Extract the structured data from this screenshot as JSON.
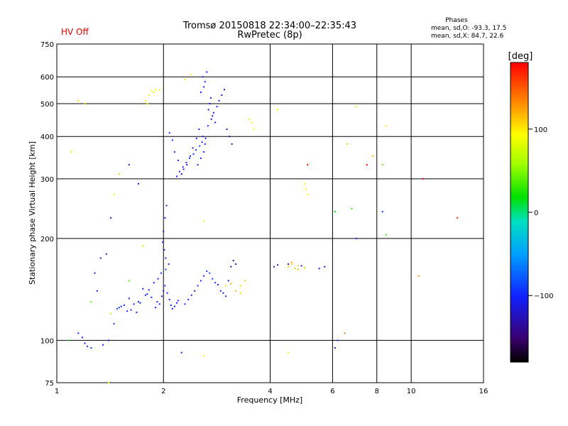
{
  "header": {
    "title": "Tromsø 20150818 22:34:00–22:35:43",
    "subtitle": "RwPretec (8p)",
    "hv_status": "HV Off",
    "phases_title": "Phases",
    "phases_o": "mean, sd,O: -93.3, 17.5",
    "phases_x": "mean, sd,X: 84.7, 22.6"
  },
  "colors": {
    "hv_status": "#e00000",
    "grid": "#000000",
    "background": "#ffffff"
  },
  "chart_data": {
    "type": "scatter",
    "xlabel": "Frequency [MHz]",
    "ylabel": "Stationary phase Virtual Height [km]",
    "x_scale": "log",
    "y_scale": "log",
    "xlim": [
      1,
      16
    ],
    "ylim": [
      75,
      750
    ],
    "x_ticks": [
      1,
      2,
      4,
      6,
      8,
      10,
      16
    ],
    "x_tick_labels": [
      "1",
      "2",
      "4",
      "6",
      "8",
      "10",
      "16"
    ],
    "y_ticks": [
      75,
      100,
      200,
      300,
      400,
      500,
      600,
      750
    ],
    "y_tick_labels": [
      "75",
      "100",
      "200",
      "300",
      "400",
      "500",
      "600",
      "750"
    ],
    "grid": true,
    "colorbar": {
      "label": "[deg]",
      "range": [
        -180,
        180
      ],
      "ticks": [
        100,
        0,
        -100
      ],
      "tick_labels": [
        "100",
        "0",
        "−100"
      ]
    },
    "series": [
      {
        "points_x": [
          1.9,
          1.92,
          1.95,
          1.98,
          2.0,
          2.02,
          2.05,
          2.08,
          2.1,
          2.12,
          2.15,
          2.18,
          2.2,
          1.85,
          1.8,
          1.75,
          1.7,
          1.65,
          1.6,
          1.55,
          1.5,
          1.48,
          1.52,
          1.58,
          1.62,
          1.68,
          1.72,
          1.78,
          1.82,
          1.88,
          1.93,
          1.97,
          2.03,
          2.07,
          2.03,
          2.01,
          1.99,
          2.0,
          2.02,
          2.04,
          2.3,
          2.35,
          2.4,
          2.45,
          2.5,
          2.55,
          2.6,
          2.65,
          2.7,
          2.75,
          2.8,
          2.85,
          2.9,
          2.95,
          3.0,
          3.05,
          3.1,
          3.15,
          3.2,
          2.5,
          2.55,
          2.6,
          2.62,
          2.58,
          2.52,
          2.48,
          2.42,
          2.38,
          2.33,
          2.28,
          2.25,
          2.2,
          2.15,
          2.12,
          2.08,
          2.18,
          2.22,
          2.27,
          2.32,
          2.37,
          2.43,
          2.47,
          2.53,
          2.57,
          2.63,
          2.67,
          2.73,
          2.77,
          2.83,
          2.87,
          2.92,
          2.97,
          3.02,
          3.07,
          3.12,
          2.6,
          2.62,
          2.58,
          2.65,
          2.55,
          2.7,
          2.75,
          2.8,
          2.68,
          2.72,
          4.1,
          4.2,
          4.5,
          4.9,
          5.0,
          5.5,
          5.7,
          4.6,
          4.8,
          1.15,
          1.18,
          1.2,
          1.22,
          1.25,
          1.35,
          1.4,
          1.45,
          1.3,
          1.28,
          1.33,
          1.38,
          1.42,
          1.6,
          1.7,
          2.25,
          6.1,
          6.2,
          6.5,
          7.0,
          8.3,
          8.5,
          1.08,
          1.25,
          1.42,
          1.6,
          1.75,
          2.6,
          6.1,
          6.8,
          7.5,
          10.8
        ],
        "points_y": [
          125,
          130,
          128,
          135,
          140,
          145,
          138,
          132,
          127,
          124,
          126,
          129,
          131,
          134,
          137,
          142,
          130,
          128,
          133,
          127,
          125,
          124,
          126,
          122,
          123,
          121,
          129,
          136,
          141,
          148,
          152,
          158,
          162,
          168,
          175,
          185,
          195,
          210,
          230,
          250,
          128,
          132,
          136,
          140,
          145,
          150,
          155,
          160,
          158,
          152,
          148,
          146,
          140,
          138,
          135,
          150,
          165,
          172,
          168,
          330,
          345,
          360,
          380,
          400,
          420,
          395,
          370,
          350,
          330,
          320,
          310,
          340,
          360,
          390,
          410,
          305,
          315,
          325,
          335,
          345,
          355,
          365,
          375,
          385,
          395,
          430,
          450,
          470,
          490,
          510,
          530,
          550,
          420,
          400,
          380,
          560,
          580,
          600,
          620,
          540,
          500,
          460,
          440,
          480,
          520,
          165,
          167,
          168,
          166,
          164,
          163,
          165,
          170,
          162,
          105,
          102,
          98,
          96,
          95,
          97,
          100,
          112,
          140,
          158,
          175,
          180,
          230,
          330,
          290,
          92,
          95,
          100,
          105,
          200,
          240,
          205,
          100,
          130,
          120,
          150,
          190,
          225,
          240,
          245,
          330,
          300
        ],
        "points_phase": [
          -110,
          -105,
          -100,
          -108,
          -112,
          -95,
          -98,
          -104,
          -110,
          -106,
          -102,
          -99,
          -101,
          -97,
          -103,
          -107,
          -109,
          -111,
          -100,
          -96,
          -94,
          -92,
          -105,
          -108,
          -110,
          -102,
          -98,
          -100,
          -104,
          -106,
          -100,
          -95,
          -93,
          -97,
          -101,
          -108,
          -110,
          -112,
          -115,
          -118,
          -95,
          -100,
          -105,
          -110,
          -102,
          -98,
          -94,
          -90,
          -88,
          -92,
          -96,
          -100,
          -104,
          -108,
          -112,
          -130,
          -140,
          -135,
          -125,
          -100,
          -102,
          -104,
          -106,
          -108,
          -110,
          -112,
          -114,
          -116,
          -118,
          -120,
          -122,
          -98,
          -96,
          -94,
          -92,
          -100,
          -101,
          -99,
          -97,
          -95,
          -93,
          -91,
          -89,
          -103,
          -105,
          -107,
          -109,
          -111,
          -113,
          -115,
          -117,
          -119,
          -121,
          -123,
          -125,
          -100,
          -102,
          -104,
          -106,
          -108,
          -110,
          -112,
          -114,
          -116,
          -118,
          -120,
          -125,
          -130,
          -120,
          110,
          -110,
          -120,
          120,
          115,
          -100,
          -105,
          -110,
          -100,
          -95,
          -100,
          -110,
          -90,
          -110,
          -112,
          -105,
          -100,
          -115,
          -110,
          -100,
          -100,
          -95,
          -90,
          -80,
          -100,
          -90,
          30,
          20,
          40,
          60,
          40,
          60,
          70,
          20,
          30
        ]
      },
      {
        "points_x": [
          1.85,
          1.9,
          1.95,
          1.88,
          1.82,
          1.78,
          1.8,
          2.3,
          2.4,
          3.5,
          3.6,
          3.55,
          3.4,
          3.3,
          4.2,
          5.0,
          5.1,
          5.05,
          4.5,
          4.6,
          4.7,
          4.8,
          6.6,
          7.0,
          7.8,
          8.3,
          8.5,
          1.1,
          1.2,
          1.4,
          1.5,
          2.6,
          3.0,
          3.2,
          3.1,
          3.3,
          4.5,
          10.5,
          13.5,
          6.5,
          1.45,
          5.1,
          1.15
        ],
        "points_y": [
          545,
          550,
          548,
          540,
          530,
          510,
          500,
          590,
          610,
          450,
          420,
          440,
          150,
          145,
          480,
          290,
          270,
          280,
          165,
          168,
          163,
          166,
          380,
          490,
          350,
          330,
          430,
          360,
          500,
          75,
          310,
          90,
          145,
          140,
          147,
          138,
          92,
          155,
          230,
          105,
          270,
          330,
          510
        ],
        "points_phase": [
          90,
          95,
          100,
          85,
          80,
          92,
          98,
          105,
          95,
          100,
          90,
          85,
          110,
          105,
          90,
          100,
          95,
          92,
          110,
          108,
          112,
          105,
          60,
          80,
          120,
          40,
          100,
          70,
          110,
          90,
          110,
          100,
          110,
          115,
          120,
          108,
          95,
          130,
          170,
          120,
          100,
          175,
          110
        ]
      }
    ]
  }
}
